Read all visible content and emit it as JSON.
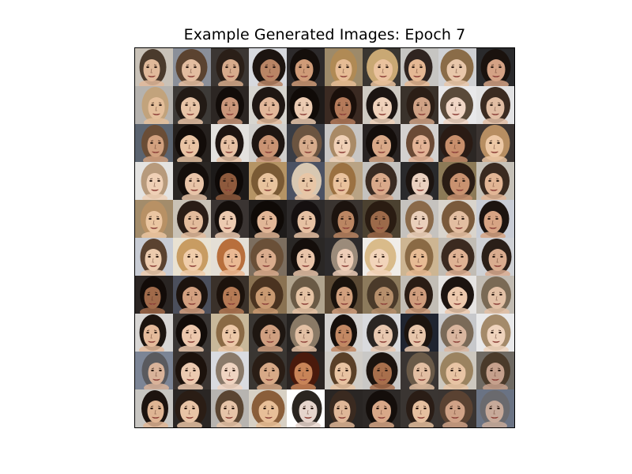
{
  "figure": {
    "title": "Example Generated Images: Epoch 7"
  },
  "grid": {
    "rows": 10,
    "cols": 10,
    "tiles": [
      [
        "#c9c2b8",
        "#4a3a2c",
        "#e0b99a"
      ],
      [
        "#8a8f99",
        "#5b4330",
        "#e3bda0"
      ],
      [
        "#3b3633",
        "#2a1f18",
        "#d7ab8c"
      ],
      [
        "#d7d9de",
        "#1c1410",
        "#b98565"
      ],
      [
        "#2d2a2b",
        "#140e0b",
        "#cf9b78"
      ],
      [
        "#9d8a6a",
        "#b08a55",
        "#e6bc95"
      ],
      [
        "#3a3631",
        "#c9a874",
        "#eac29e"
      ],
      [
        "#c6c5c2",
        "#2f2420",
        "#e5b894"
      ],
      [
        "#cfd0d3",
        "#8a6c48",
        "#e8c7aa"
      ],
      [
        "#2a2a2c",
        "#1a120e",
        "#d4a285"
      ],
      [
        "#b5b2ae",
        "#c2a37c",
        "#e5bf9b"
      ],
      [
        "#3d3a37",
        "#221a15",
        "#e7c4a7"
      ],
      [
        "#2c2623",
        "#120c09",
        "#c9967a"
      ],
      [
        "#d7d5cf",
        "#1f1713",
        "#e2b89a"
      ],
      [
        "#1f1b19",
        "#100b08",
        "#ebcbb2"
      ],
      [
        "#3b2a22",
        "#1a0f0a",
        "#b47a5a"
      ],
      [
        "#cfcac2",
        "#1c1512",
        "#efd2bb"
      ],
      [
        "#3a322b",
        "#2b1e16",
        "#cfa285"
      ],
      [
        "#e8e8ea",
        "#5a4a3a",
        "#f0d6c6"
      ],
      [
        "#e2e2e3",
        "#3b2b21",
        "#e2bea4"
      ],
      [
        "#5b6470",
        "#6a4d36",
        "#d2a17f"
      ],
      [
        "#26211e",
        "#120c09",
        "#e9c4a4"
      ],
      [
        "#e3e1de",
        "#1d1411",
        "#e6c1a4"
      ],
      [
        "#d1cfcc",
        "#1e1511",
        "#c99373"
      ],
      [
        "#3a3d45",
        "#6b5440",
        "#d7ac8c"
      ],
      [
        "#c8c6c4",
        "#a98a66",
        "#efd0b6"
      ],
      [
        "#292423",
        "#140e0b",
        "#d9a988"
      ],
      [
        "#d3d1cf",
        "#6a4a35",
        "#e2b396"
      ],
      [
        "#2c2724",
        "#2a1b14",
        "#c88f6c"
      ],
      [
        "#3b3431",
        "#b78e62",
        "#edc8a6"
      ],
      [
        "#e4e3e1",
        "#b79a7c",
        "#efd0b6"
      ],
      [
        "#2a2623",
        "#140e0b",
        "#e8c4a8"
      ],
      [
        "#1d1a19",
        "#0e0907",
        "#8e5a3d"
      ],
      [
        "#b59465",
        "#7a5a35",
        "#e8c39d"
      ],
      [
        "#4b5263",
        "#d8c8b2",
        "#e8c6a6"
      ],
      [
        "#b9a384",
        "#9b7141",
        "#e9c29d"
      ],
      [
        "#c4c2bf",
        "#3a2b22",
        "#d9a98a"
      ],
      [
        "#2a2a2c",
        "#1c1410",
        "#ead1c0"
      ],
      [
        "#8c7a57",
        "#2a1c14",
        "#c99270"
      ],
      [
        "#c6c1b8",
        "#3a2a20",
        "#e2b595"
      ],
      [
        "#a38c6b",
        "#b89165",
        "#ebc6a2"
      ],
      [
        "#c9c2b6",
        "#2a1d16",
        "#e3bc9c"
      ],
      [
        "#3a3432",
        "#140e0b",
        "#eccab0"
      ],
      [
        "#1e1b1a",
        "#0f0a07",
        "#e1b697"
      ],
      [
        "#2d2a2a",
        "#151010",
        "#e6c1a3"
      ],
      [
        "#3a3430",
        "#1c130e",
        "#bb8663"
      ],
      [
        "#4b4130",
        "#2a1c12",
        "#9c6a4a"
      ],
      [
        "#c5c2be",
        "#8a6a4a",
        "#ead0bb"
      ],
      [
        "#d9d4cc",
        "#7a5a3c",
        "#e3bea1"
      ],
      [
        "#c9cdd6",
        "#1c1410",
        "#d7a484"
      ],
      [
        "#c8ccd4",
        "#5a4230",
        "#eccbae"
      ],
      [
        "#e9e2d2",
        "#c89c62",
        "#f0cdaa"
      ],
      [
        "#e4dfd6",
        "#b86f3c",
        "#eab993"
      ],
      [
        "#7c6e5f",
        "#6a5038",
        "#d9ac8d"
      ],
      [
        "#2a2725",
        "#140e0b",
        "#e8c4a9"
      ],
      [
        "#2d2b2c",
        "#9b8b7a",
        "#edcdb7"
      ],
      [
        "#f0ede8",
        "#d9bb8a",
        "#f2d4ba"
      ],
      [
        "#cdb592",
        "#8a6a45",
        "#e7bb94"
      ],
      [
        "#c1bcb4",
        "#3b2a20",
        "#dfb294"
      ],
      [
        "#cfd1d5",
        "#2a1f18",
        "#d9ac8f"
      ],
      [
        "#2a2523",
        "#120b08",
        "#a06a4a"
      ],
      [
        "#4b4f5c",
        "#1c130e",
        "#d2a080"
      ],
      [
        "#3a312a",
        "#1c120c",
        "#b57a55"
      ],
      [
        "#8a7252",
        "#4a3320",
        "#c99a72"
      ],
      [
        "#b1a48e",
        "#6a5a45",
        "#e5c3a4"
      ],
      [
        "#5c4a35",
        "#1a120c",
        "#d1a07e"
      ],
      [
        "#8c7a5c",
        "#4a3a2a",
        "#b68f6c"
      ],
      [
        "#c2bdb5",
        "#2a1c14",
        "#cf9d7d"
      ],
      [
        "#e6e4e2",
        "#1c1410",
        "#ecc9ad"
      ],
      [
        "#c2bcb3",
        "#7a6a55",
        "#e3c1a6"
      ],
      [
        "#d8d6d4",
        "#1c140f",
        "#e5bb9b"
      ],
      [
        "#3a3634",
        "#120c09",
        "#ecc8ad"
      ],
      [
        "#c8b89a",
        "#8a6a45",
        "#ecc8a8"
      ],
      [
        "#3a3633",
        "#1e1611",
        "#cf9f80"
      ],
      [
        "#252220",
        "#8a7a66",
        "#e2c0a4"
      ],
      [
        "#d4d2d0",
        "#160f0b",
        "#c28863"
      ],
      [
        "#d9dadd",
        "#2a2522",
        "#e8c8b0"
      ],
      [
        "#1f2430",
        "#1c140f",
        "#e7c6ab"
      ],
      [
        "#c7c8cb",
        "#7a6a58",
        "#d9b69f"
      ],
      [
        "#e9e9ea",
        "#a48a6a",
        "#efd3bd"
      ],
      [
        "#7c8596",
        "#5a5a5e",
        "#d9b39a"
      ],
      [
        "#3a3431",
        "#1c120c",
        "#eccab0"
      ],
      [
        "#d9dbe0",
        "#8a7a6a",
        "#efd4c1"
      ],
      [
        "#3a3632",
        "#2a1d15",
        "#d7a987"
      ],
      [
        "#2a2422",
        "#4a1a0c",
        "#c88458"
      ],
      [
        "#d0ccc6",
        "#5a4028",
        "#e8c3a2"
      ],
      [
        "#c9c8c6",
        "#1c130e",
        "#a86f4c"
      ],
      [
        "#3a3533",
        "#6a5a48",
        "#e2bea2"
      ],
      [
        "#cdc8bf",
        "#9b8360",
        "#e8c4a4"
      ],
      [
        "#6f6a63",
        "#4a3a2a",
        "#c5a08c"
      ],
      [
        "#c8c6c2",
        "#1c130f",
        "#dfb594"
      ],
      [
        "#2a2624",
        "#2a1d15",
        "#e8c4a6"
      ],
      [
        "#b7b4b0",
        "#5a4532",
        "#e6c4a8"
      ],
      [
        "#d7d0c4",
        "#8a5e3a",
        "#e8bf98"
      ],
      [
        "#ffffff",
        "#2a2520",
        "#e6d5cc"
      ],
      [
        "#2a2624",
        "#3a2a20",
        "#dfb798"
      ],
      [
        "#2d2927",
        "#140e0b",
        "#d8a888"
      ],
      [
        "#3a3532",
        "#2a1d16",
        "#e5bf9f"
      ],
      [
        "#3a3431",
        "#5a4232",
        "#cfa287"
      ],
      [
        "#6a7384",
        "#6a6a6e",
        "#c7aa9a"
      ]
    ]
  }
}
